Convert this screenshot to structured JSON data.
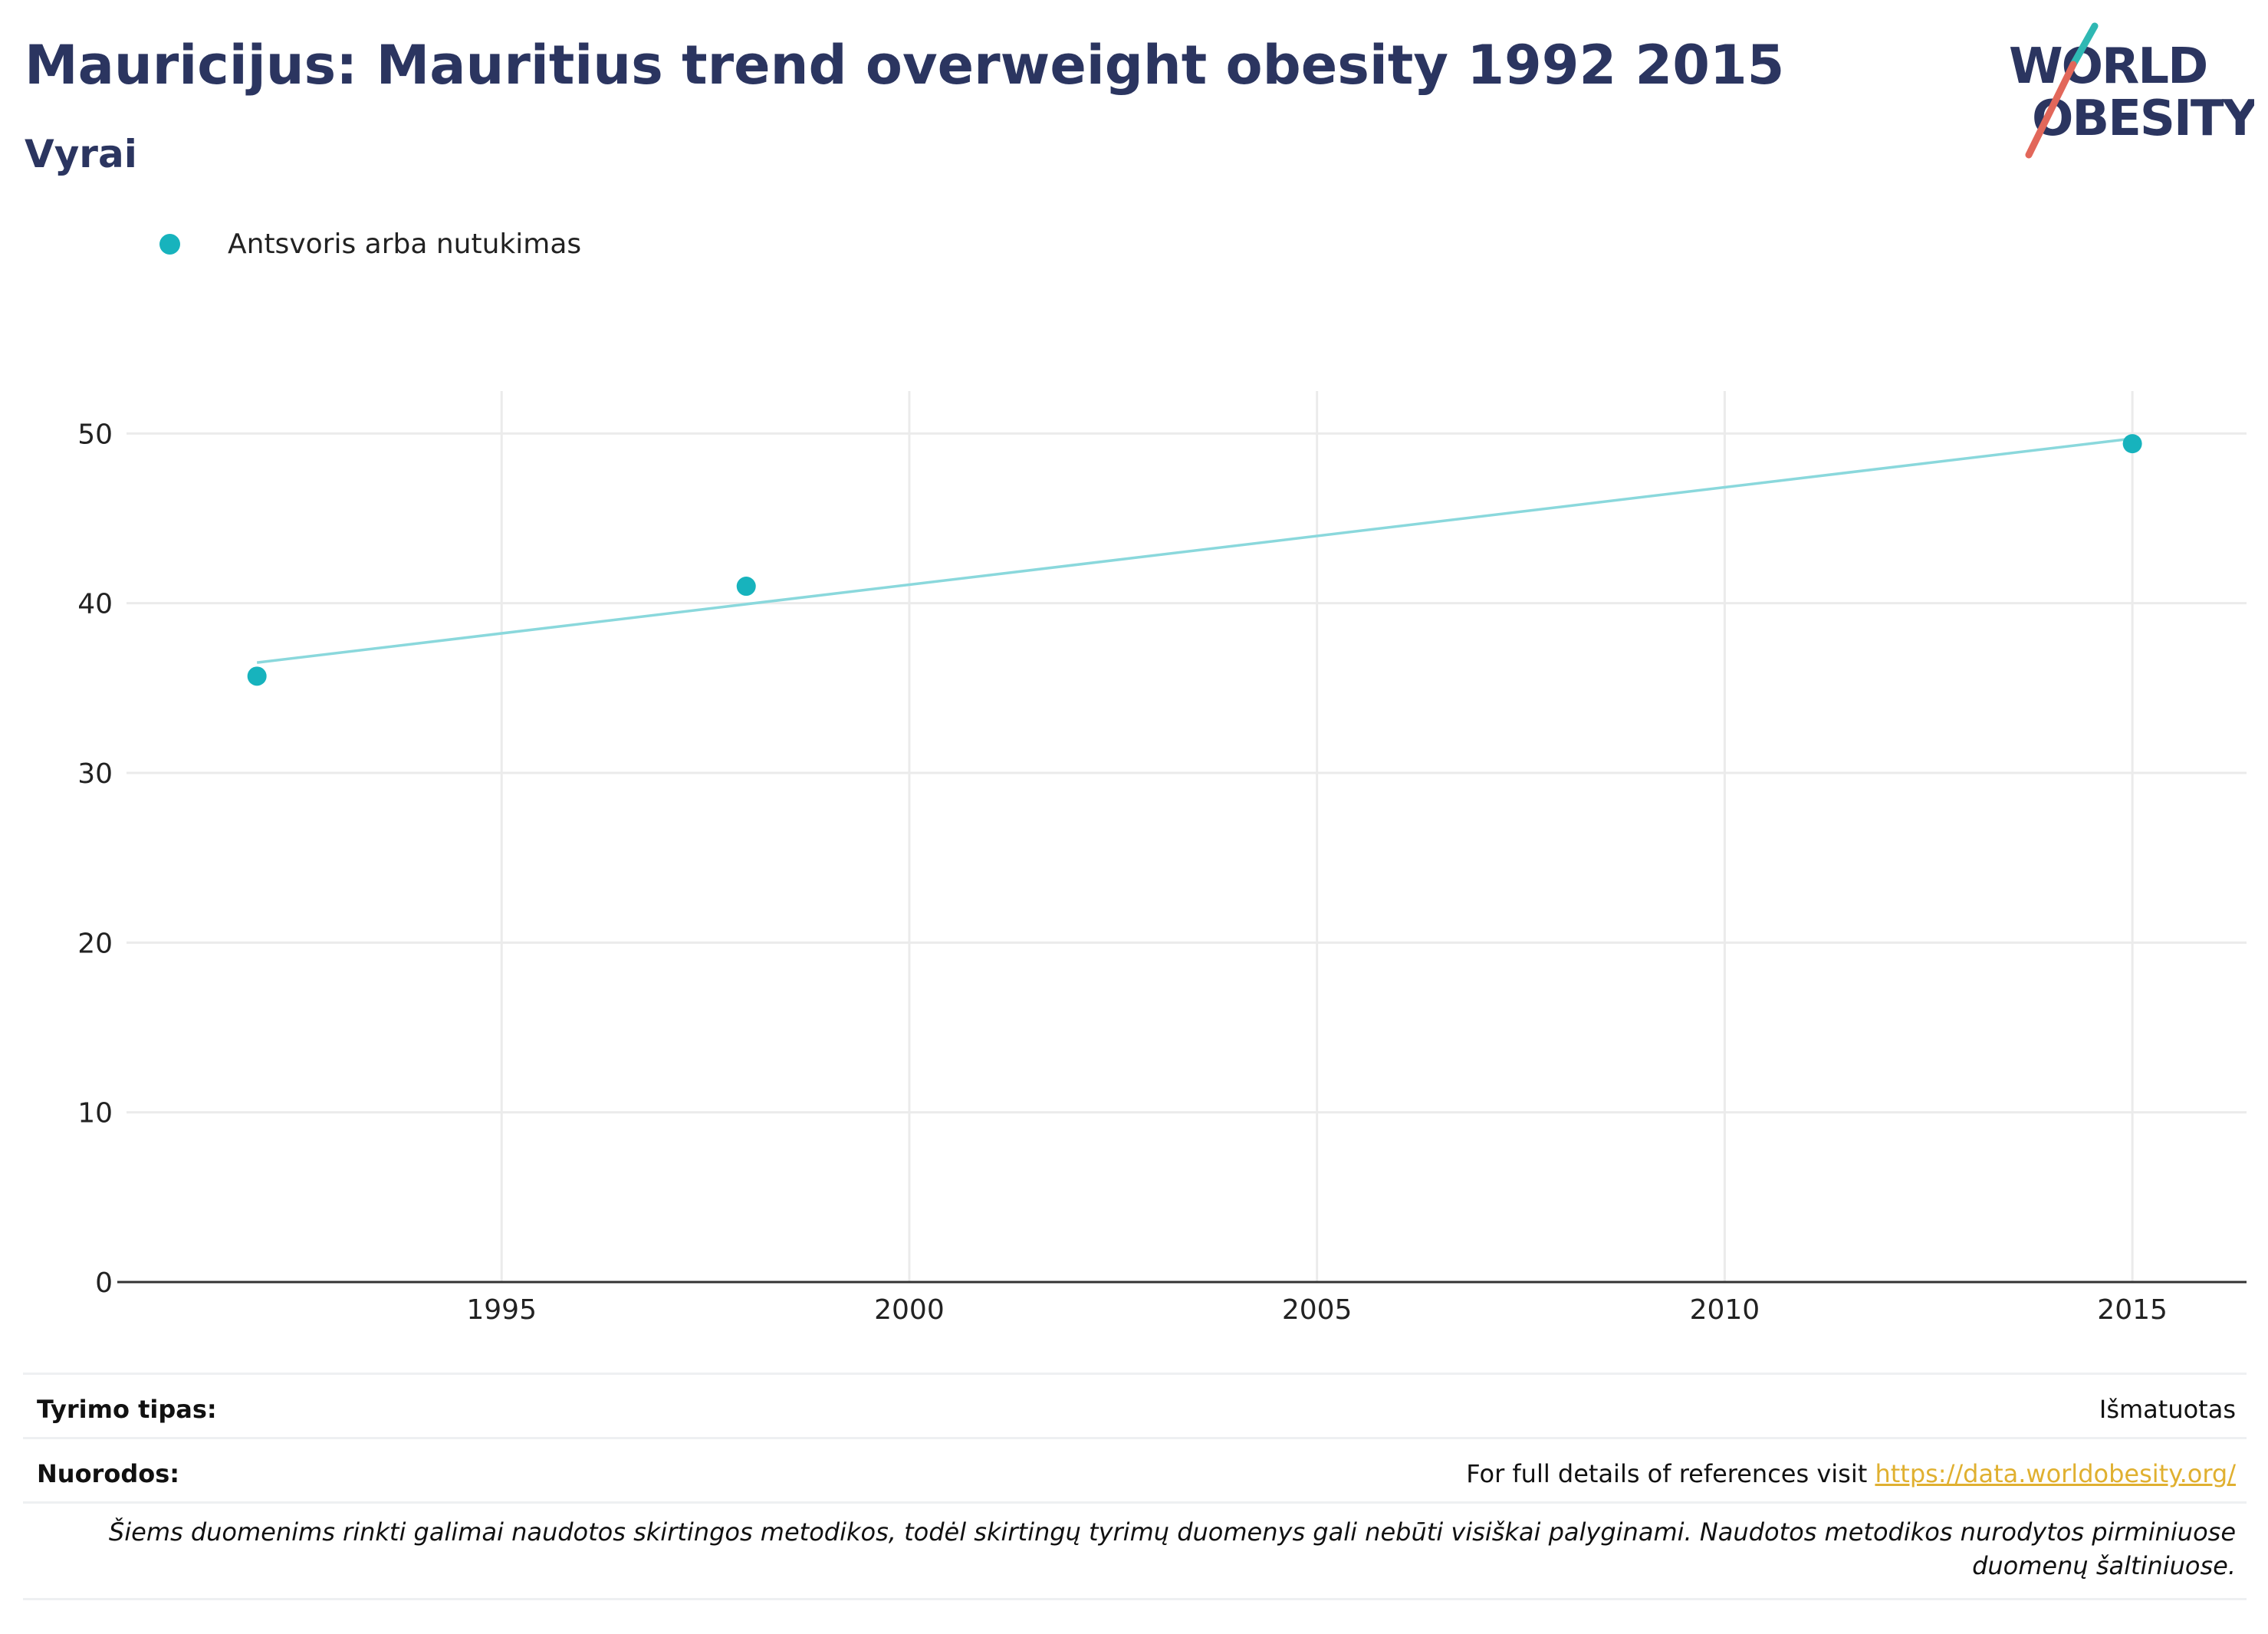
{
  "header": {
    "title": "Mauricijus: Mauritius trend overweight obesity 1992 2015",
    "subtitle": "Vyrai"
  },
  "logo": {
    "line1": "WORLD",
    "line2": "OBESITY",
    "navy": "#2b3560",
    "teal": "#2fb8b3",
    "coral": "#e2675a"
  },
  "chart_data": {
    "type": "scatter",
    "title": "Mauricijus: Mauritius trend overweight obesity 1992 2015",
    "subtitle": "Vyrai",
    "xlabel": "",
    "ylabel": "",
    "xlim": [
      1990.4,
      2016.4
    ],
    "ylim": [
      0,
      52.5
    ],
    "x_ticks": [
      1995,
      2000,
      2005,
      2010,
      2015
    ],
    "y_ticks": [
      0,
      10,
      20,
      30,
      40,
      50
    ],
    "grid": true,
    "legend_position": "top-left",
    "series": [
      {
        "name": "Antsvoris arba nutukimas",
        "color": "#17b3bd",
        "points": [
          {
            "x": 1992,
            "y": 35.7
          },
          {
            "x": 1998,
            "y": 41.0
          },
          {
            "x": 2015,
            "y": 49.4
          }
        ]
      }
    ],
    "trendline": {
      "color": "#8ad8dc",
      "start": {
        "x": 1992,
        "y": 36.5
      },
      "end": {
        "x": 2015,
        "y": 49.7
      }
    }
  },
  "info": {
    "survey_type_label": "Tyrimo tipas:",
    "survey_type_value": "Išmatuotas",
    "references_label": "Nuorodos:",
    "references_text": "For full details of references visit",
    "references_link": "https://data.worldobesity.org/",
    "note": "Šiems duomenims rinkti galimai naudotos skirtingos metodikos, todėl skirtingų tyrimų duomenys gali nebūti visiškai palyginami. Naudotos metodikos nurodytos pirminiuose duomenų šaltiniuose."
  }
}
